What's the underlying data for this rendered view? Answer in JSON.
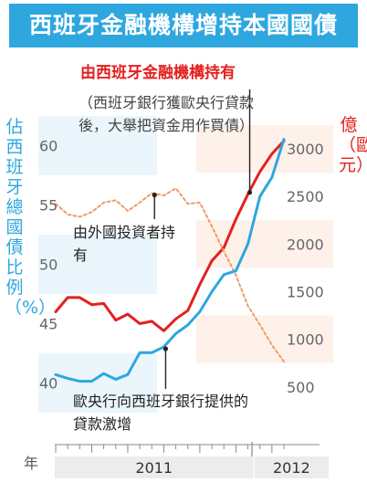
{
  "title": "西班牙金融機構增持本國國債",
  "left_axis_label": "佔西班牙總國債比例（%）",
  "right_axis_label": "億（歐元）",
  "annotations": {
    "red_series": "由西班牙金融機構持有",
    "red_series_note": "（西班牙銀行獲歐央行貸款後，大舉把資金用作買債）",
    "foreign_series": "由外國投資者持有",
    "blue_series": "歐央行向西班牙銀行提供的貸款激增"
  },
  "colors": {
    "blue": "#2ea7df",
    "red": "#e3211f",
    "orange": "#f19a6b",
    "axis_band": "#ececec",
    "text": "#222222"
  },
  "chart_data": {
    "type": "line",
    "x": [
      1,
      2,
      3,
      4,
      5,
      6,
      7,
      8,
      9,
      10,
      11,
      12,
      13,
      14,
      15,
      16,
      17,
      18,
      19,
      20
    ],
    "x_axis_label": "年",
    "x_groups": [
      {
        "label": "2011",
        "from": 1,
        "to": 17
      },
      {
        "label": "2012",
        "from": 18,
        "to": 20
      }
    ],
    "left_axis": {
      "ticks": [
        "40",
        "45",
        "50",
        "55",
        "60"
      ],
      "range": [
        39.5,
        61.5
      ]
    },
    "right_axis": {
      "ticks": [
        "500",
        "1000",
        "1500",
        "2000",
        "2500",
        "3000"
      ],
      "range": [
        460,
        3250
      ]
    },
    "series": [
      {
        "name": "由西班牙金融機構持有",
        "axis": "left",
        "color": "#e3211f",
        "style": "solid",
        "values": [
          46.0,
          47.2,
          47.2,
          46.6,
          46.7,
          45.3,
          45.8,
          45.0,
          45.2,
          44.4,
          45.4,
          46.1,
          48.3,
          50.3,
          51.4,
          53.8,
          55.9,
          57.8,
          59.3,
          60.4
        ]
      },
      {
        "name": "由外國投資者持有",
        "axis": "left",
        "color": "#f19a6b",
        "style": "dashed",
        "values": [
          55.1,
          54.2,
          54.0,
          54.4,
          55.2,
          55.4,
          54.5,
          55.2,
          56.0,
          55.8,
          56.4,
          55.1,
          55.2,
          53.2,
          51.1,
          49.1,
          46.5,
          44.9,
          43.2,
          41.8
        ]
      },
      {
        "name": "歐央行向西班牙銀行提供的貸款",
        "axis": "right",
        "color": "#2ea7df",
        "style": "solid",
        "values": [
          630,
          590,
          560,
          560,
          640,
          580,
          630,
          860,
          860,
          920,
          1060,
          1150,
          1290,
          1500,
          1680,
          1720,
          2000,
          2500,
          2700,
          3100
        ]
      }
    ]
  }
}
